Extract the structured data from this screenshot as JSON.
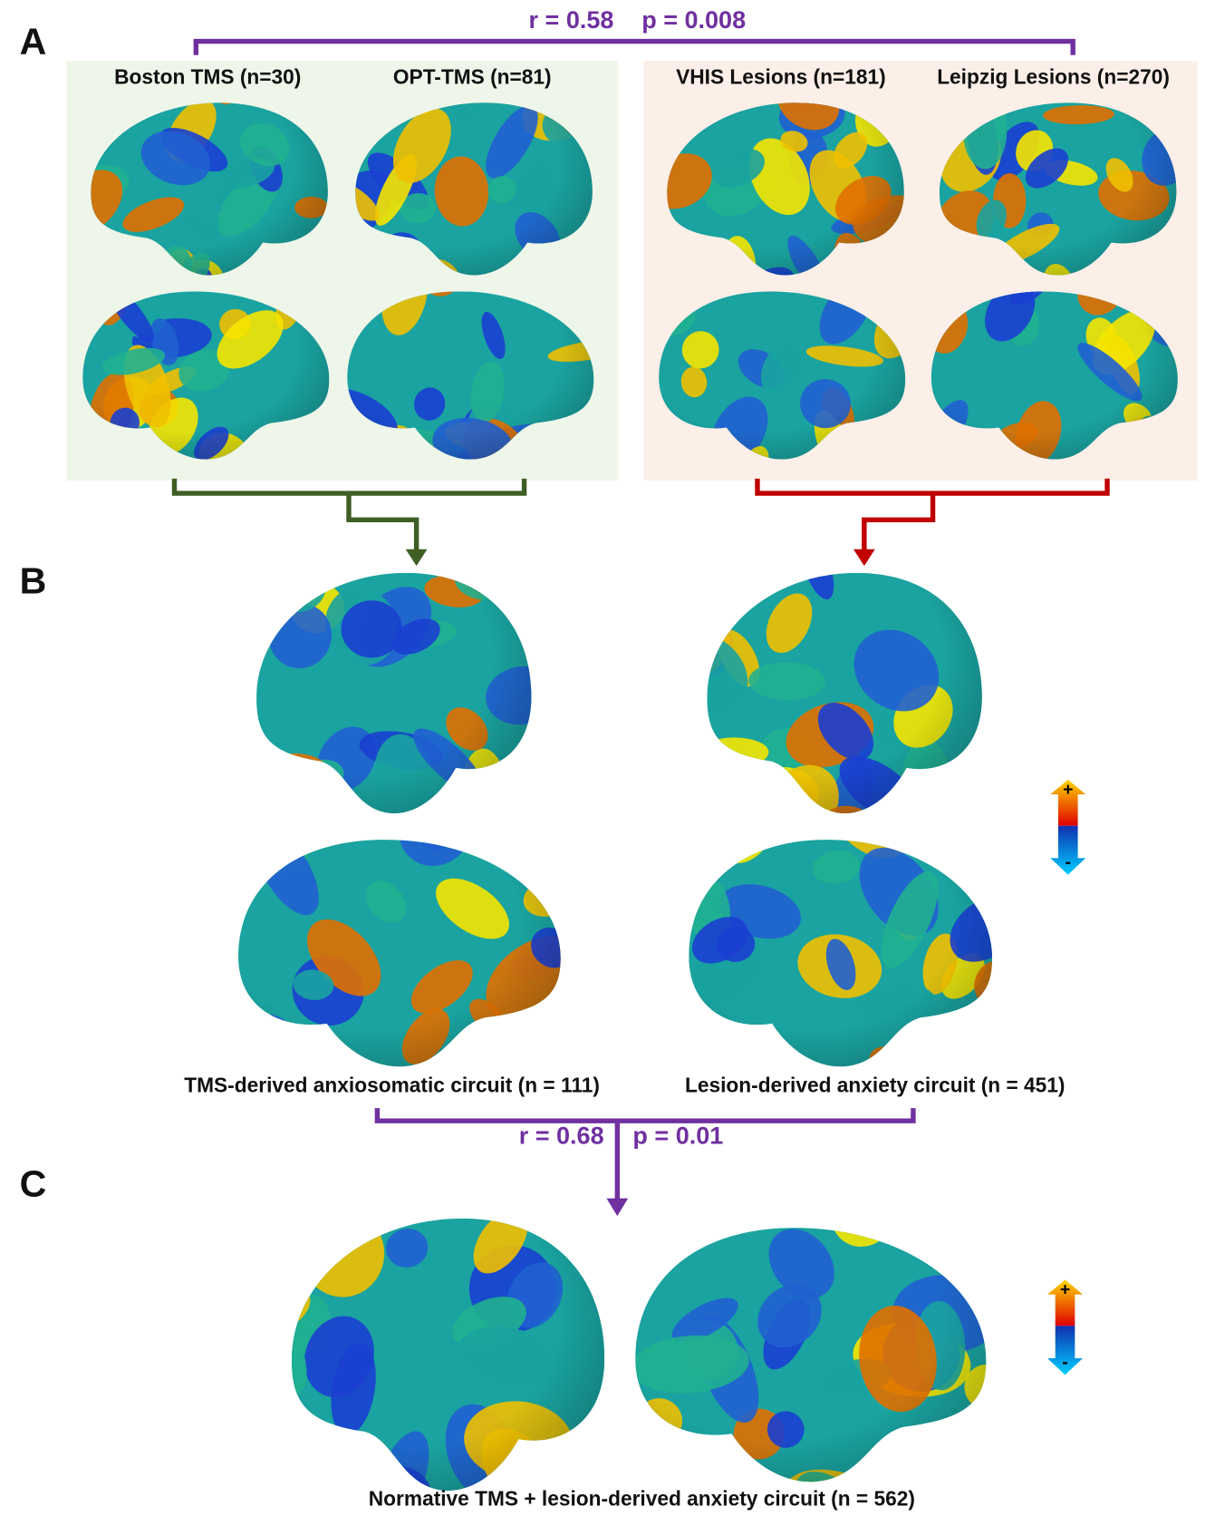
{
  "panel_labels": [
    "A",
    "B",
    "C"
  ],
  "panel_a": {
    "correlation": {
      "r": "r = 0.58",
      "p": "p = 0.008"
    },
    "tms_datasets": [
      "Boston TMS (n=30)",
      "OPT-TMS (n=81)"
    ],
    "lesion_datasets": [
      "VHIS Lesions (n=181)",
      "Leipzig Lesions (n=270)"
    ]
  },
  "panel_b": {
    "tms_circuit": "TMS-derived anxiosomatic circuit (n = 111)",
    "lesion_circuit": "Lesion-derived anxiety circuit (n = 451)",
    "correlation": {
      "r": "r = 0.68",
      "p": "p = 0.01"
    }
  },
  "panel_c": {
    "caption": "Normative TMS + lesion-derived anxiety circuit (n = 562)"
  },
  "colorbar": {
    "plus": "+",
    "minus": "-"
  }
}
